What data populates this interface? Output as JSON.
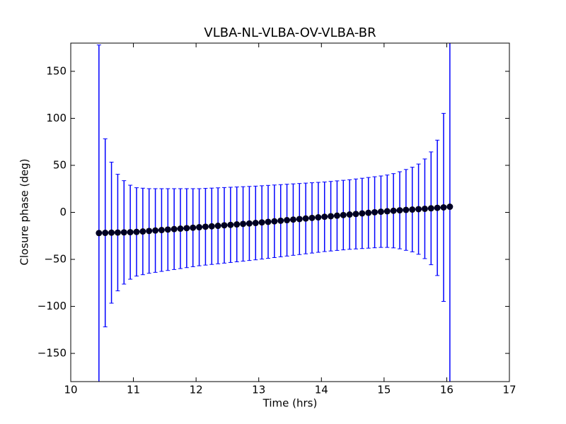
{
  "chart_data": {
    "type": "errorbar",
    "title": "VLBA-NL-VLBA-OV-VLBA-BR",
    "xlabel": "Time (hrs)",
    "ylabel": "Closure phase (deg)",
    "xlim": [
      10,
      17
    ],
    "xticks": [
      10,
      11,
      12,
      13,
      14,
      15,
      16,
      17
    ],
    "ylim": [
      -180,
      180
    ],
    "yticks": [
      {
        "value": -150,
        "label": "−150"
      },
      {
        "value": -100,
        "label": "−100"
      },
      {
        "value": -50,
        "label": "−50"
      },
      0,
      50,
      100,
      150
    ],
    "x": [
      10.45,
      10.55,
      10.65,
      10.75,
      10.85,
      10.95,
      11.05,
      11.15,
      11.25,
      11.35,
      11.45,
      11.55,
      11.65,
      11.75,
      11.85,
      11.95,
      12.05,
      12.15,
      12.25,
      12.35,
      12.45,
      12.55,
      12.65,
      12.75,
      12.85,
      12.95,
      13.05,
      13.15,
      13.25,
      13.35,
      13.45,
      13.55,
      13.65,
      13.75,
      13.85,
      13.95,
      14.05,
      14.15,
      14.25,
      14.35,
      14.45,
      14.55,
      14.65,
      14.75,
      14.85,
      14.95,
      15.05,
      15.15,
      15.25,
      15.35,
      15.45,
      15.55,
      15.65,
      15.75,
      15.85,
      15.95,
      16.05
    ],
    "series": [
      {
        "marker_color": "#000022",
        "error_color": "#0000ff",
        "values": [
          -22,
          -21.8,
          -21.6,
          -21.5,
          -21.3,
          -21.1,
          -20.8,
          -20.3,
          -19.8,
          -19.3,
          -18.8,
          -18.3,
          -17.8,
          -17.3,
          -16.8,
          -16.3,
          -15.8,
          -15.3,
          -14.8,
          -14.3,
          -13.8,
          -13.3,
          -12.8,
          -12.3,
          -11.8,
          -11.3,
          -10.7,
          -10.1,
          -9.5,
          -8.9,
          -8.3,
          -7.7,
          -7.1,
          -6.5,
          -5.9,
          -5.3,
          -4.7,
          -4.1,
          -3.5,
          -2.9,
          -2.3,
          -1.7,
          -1.1,
          -0.5,
          0.1,
          0.7,
          1.2,
          1.7,
          2.2,
          2.6,
          3.0,
          3.4,
          3.8,
          4.3,
          4.8,
          5.3,
          6
        ],
        "errors": [
          200,
          100,
          75,
          62,
          55,
          50,
          47,
          46,
          45,
          44.5,
          44,
          43.5,
          43,
          42.5,
          42,
          41.5,
          41,
          40.8,
          40.6,
          40.4,
          40.2,
          40,
          39.8,
          39.6,
          39.4,
          39.2,
          39,
          38.8,
          38.6,
          38.4,
          38.2,
          38,
          37.8,
          37.6,
          37.4,
          37.2,
          37,
          37,
          37,
          37,
          37,
          37.2,
          37.4,
          37.6,
          37.8,
          38,
          38.5,
          39.5,
          41,
          43,
          45,
          48,
          53,
          60,
          72,
          100,
          200
        ]
      }
    ]
  }
}
